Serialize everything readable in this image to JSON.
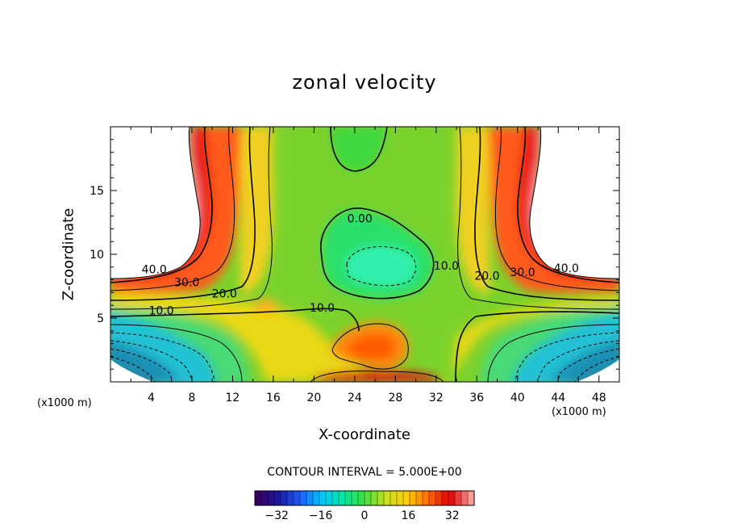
{
  "chart_data": {
    "type": "contour",
    "title": "zonal velocity",
    "xlabel": "X-coordinate",
    "ylabel": "Z-coordinate",
    "x_unit_label": "(x1000 m)",
    "x_unit_label_right": "(x1000 m)",
    "xlim": [
      0,
      50
    ],
    "ylim": [
      0,
      20
    ],
    "x_ticks": [
      4,
      8,
      12,
      16,
      20,
      24,
      28,
      32,
      36,
      40,
      44,
      48
    ],
    "y_ticks": [
      5,
      10,
      15
    ],
    "contour_interval_label": "CONTOUR INTERVAL = 5.000E+00",
    "contour_interval": 5.0,
    "colorbar": {
      "range": [
        -40,
        40
      ],
      "ticks": [
        -32,
        -16,
        0,
        16,
        32
      ],
      "colors": [
        "#3a0060",
        "#1a1aa0",
        "#1f5fff",
        "#00c8ff",
        "#00e8a0",
        "#40e040",
        "#c8e020",
        "#ffd000",
        "#ff6a00",
        "#e00000",
        "#ff9a9a"
      ]
    },
    "contour_labels": [
      {
        "text": "40.0",
        "x": 4.3,
        "y": 8.5
      },
      {
        "text": "30.0",
        "x": 7.5,
        "y": 7.5
      },
      {
        "text": "20.0",
        "x": 11.2,
        "y": 6.6
      },
      {
        "text": "10.0",
        "x": 5.0,
        "y": 5.3
      },
      {
        "text": "10.0",
        "x": 20.8,
        "y": 5.5
      },
      {
        "text": "0.00",
        "x": 24.5,
        "y": 12.5
      },
      {
        "text": "10.0",
        "x": 33.0,
        "y": 8.8
      },
      {
        "text": "20.0",
        "x": 37.0,
        "y": 8.0
      },
      {
        "text": "30.0",
        "x": 40.5,
        "y": 8.3
      },
      {
        "text": "40.0",
        "x": 44.8,
        "y": 8.6
      }
    ]
  }
}
